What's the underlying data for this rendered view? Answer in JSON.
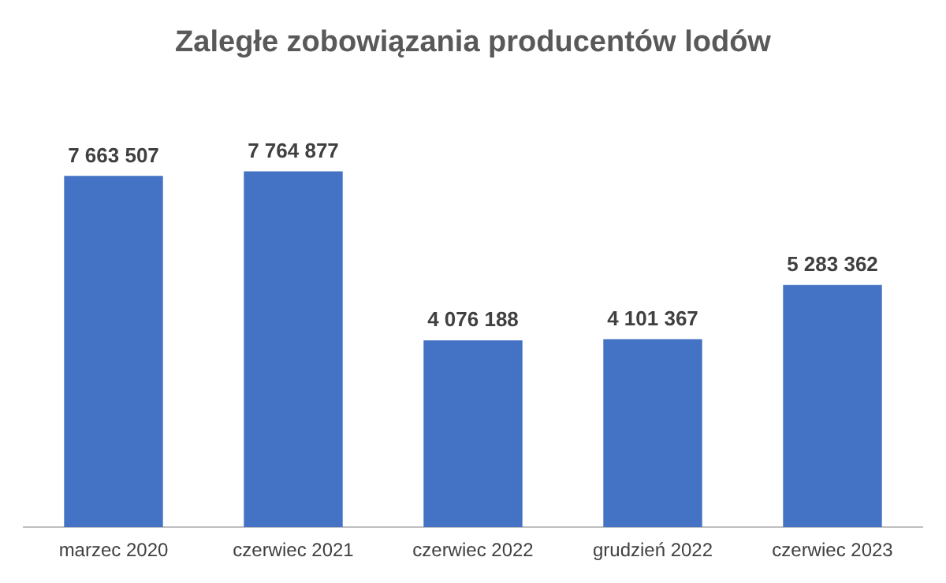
{
  "chart_data": {
    "type": "bar",
    "title": "Zaległe zobowiązania producentów lodów",
    "categories": [
      "marzec 2020",
      "czerwiec 2021",
      "czerwiec 2022",
      "grudzień 2022",
      "czerwiec 2023"
    ],
    "values": [
      7663507,
      7764877,
      4076188,
      4101367,
      5283362
    ],
    "value_labels": [
      "7 663 507",
      "7 764 877",
      "4 076 188",
      "4 101 367",
      "5 283 362"
    ],
    "color": "#4472c4",
    "grid": false,
    "legend": false,
    "tick_labels": "x"
  }
}
